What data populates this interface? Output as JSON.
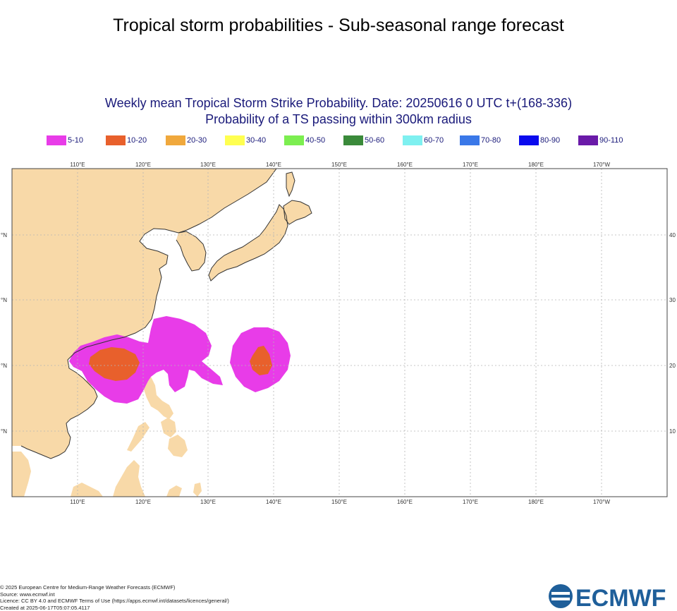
{
  "header": {
    "title": "Tropical storm probabilities - Sub-seasonal range forecast"
  },
  "map": {
    "subtitle_line1": "Weekly mean Tropical Storm Strike Probability. Date: 20250616  0 UTC    t+(168-336)",
    "subtitle_line2": "Probability of a TS passing within  300km radius",
    "legend": [
      {
        "label": "5-10",
        "color": "#e83ce8"
      },
      {
        "label": "10-20",
        "color": "#e8602c"
      },
      {
        "label": "20-30",
        "color": "#f0a83c"
      },
      {
        "label": "30-40",
        "color": "#ffff50"
      },
      {
        "label": "40-50",
        "color": "#7cee50"
      },
      {
        "label": "50-60",
        "color": "#3a8a3a"
      },
      {
        "label": "60-70",
        "color": "#7ef0f0"
      },
      {
        "label": "70-80",
        "color": "#3a78e8"
      },
      {
        "label": "80-90",
        "color": "#0a0aee"
      },
      {
        "label": "90-110",
        "color": "#6a1aa8"
      }
    ],
    "lon_labels": [
      "110°E",
      "120°E",
      "130°E",
      "140°E",
      "150°E",
      "160°E",
      "170°E",
      "180°E",
      "170°W"
    ],
    "lat_labels_left": [
      "°N",
      "°N",
      "°N",
      "°N"
    ],
    "lat_labels_right": [
      "40",
      "30",
      "20",
      "10"
    ],
    "land_color": "#f8d9a8",
    "sea_color": "#ffffff"
  },
  "footer": {
    "copyright": "© 2025 European Centre for Medium-Range Weather Forecasts (ECMWF)",
    "source": "Source: www.ecmwf.int",
    "license": "Licence: CC BY 4.0 and ECMWF Terms of Use (https://apps.ecmwf.int/datasets/licences/general/)",
    "created": "Created at 2025-06-17T05:07:05.4117",
    "logo_text": "ECMWF",
    "logo_color": "#1f5f9a"
  }
}
